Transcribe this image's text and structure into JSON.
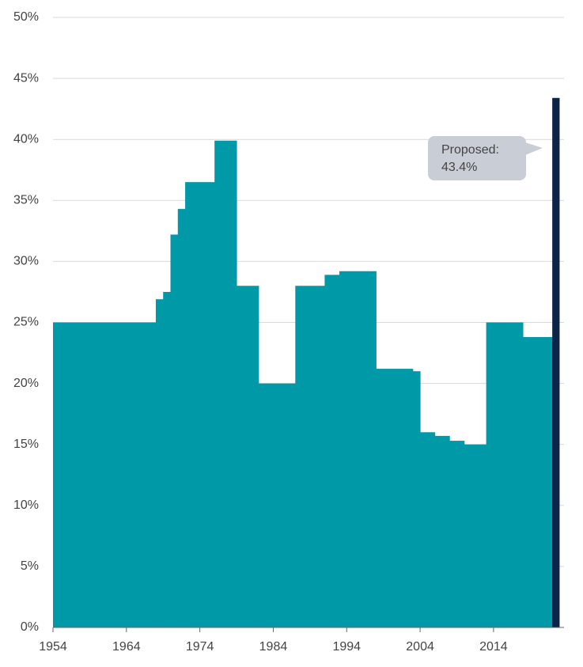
{
  "chart_data": {
    "type": "step-area",
    "x": [
      1954,
      1968,
      1969,
      1970,
      1971,
      1972,
      1976,
      1979,
      1982,
      1987,
      1991,
      1993,
      1998,
      2003,
      2004,
      2006,
      2008,
      2010,
      2013,
      2018
    ],
    "values": [
      25,
      26.9,
      27.5,
      32.2,
      34.3,
      36.5,
      39.9,
      28,
      20,
      28,
      28.9,
      29.2,
      21.2,
      21,
      16,
      15.7,
      15.3,
      15,
      25,
      23.8
    ],
    "color": "#0099a8",
    "proposed": {
      "label": "Proposed:",
      "value": 43.4,
      "value_label": "43.4%",
      "x": [
        2022,
        2023
      ],
      "color": "#0b2447"
    },
    "xlim": [
      1954,
      2023.6
    ],
    "xticks": [
      1954,
      1964,
      1974,
      1984,
      1994,
      2004,
      2014
    ],
    "ylim": [
      0,
      50
    ],
    "yticks": [
      {
        "value": 0,
        "label": "0%"
      },
      {
        "value": 5,
        "label": "5%"
      },
      {
        "value": 10,
        "label": "10%"
      },
      {
        "value": 15,
        "label": "15%"
      },
      {
        "value": 20,
        "label": "20%"
      },
      {
        "value": 25,
        "label": "25%"
      },
      {
        "value": 30,
        "label": "30%"
      },
      {
        "value": 35,
        "label": "35%"
      },
      {
        "value": 40,
        "label": "40%"
      },
      {
        "value": 45,
        "label": "45%"
      },
      {
        "value": 50,
        "label": "50%"
      }
    ],
    "grid": true
  }
}
